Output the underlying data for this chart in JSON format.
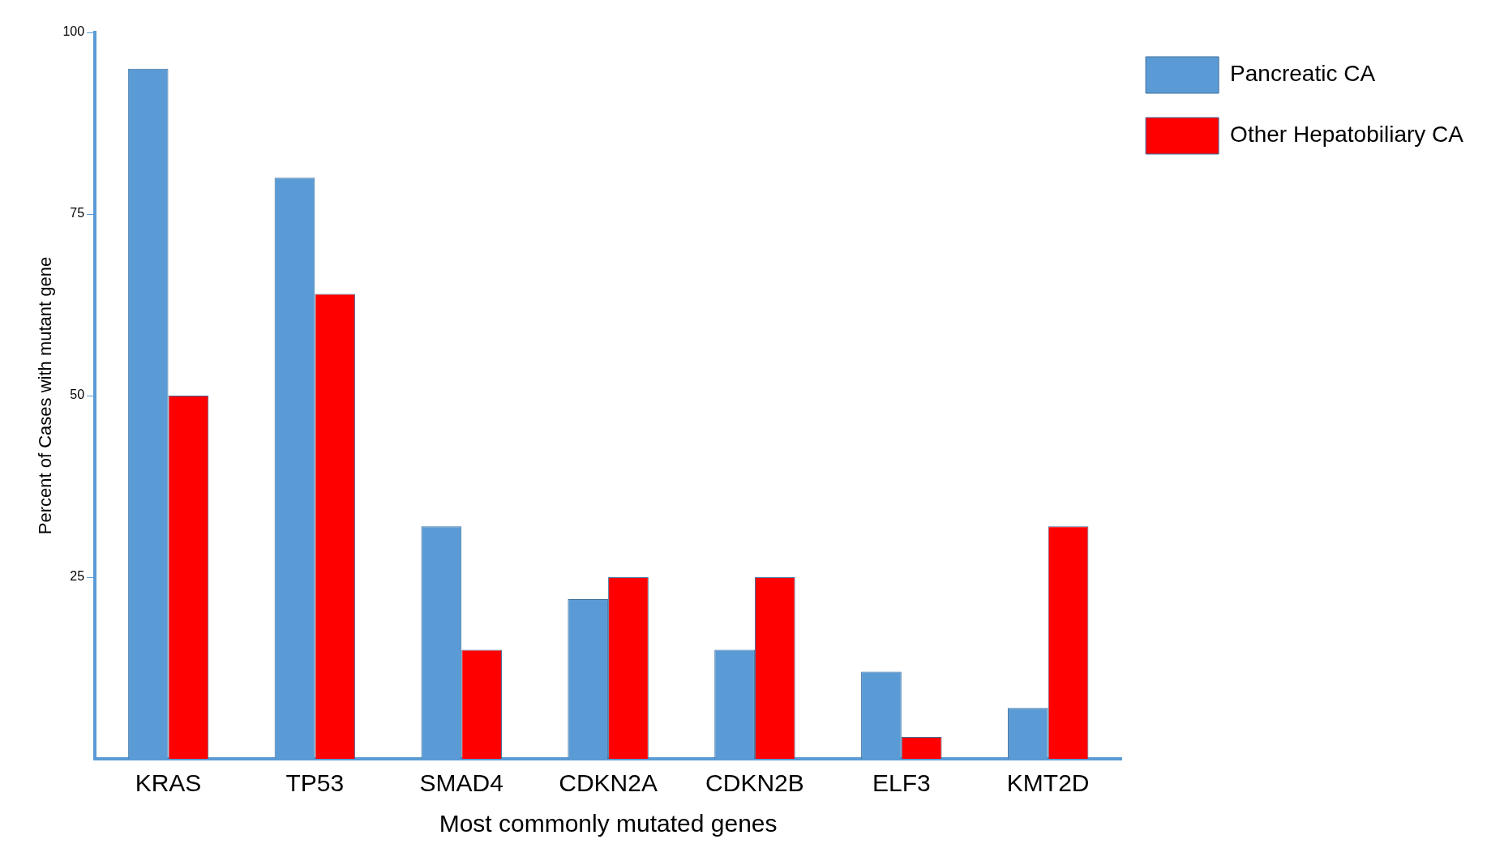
{
  "chart_data": {
    "type": "bar",
    "xlabel": "Most commonly mutated genes",
    "ylabel": "Percent of Cases with mutant gene",
    "categories": [
      "KRAS",
      "TP53",
      "SMAD4",
      "CDKN2A",
      "CDKN2B",
      "ELF3",
      "KMT2D"
    ],
    "series": [
      {
        "name": "Pancreatic CA",
        "color": "#5b9bd5",
        "values": [
          95,
          80,
          32,
          22,
          15,
          12,
          7
        ]
      },
      {
        "name": "Other Hepatobiliary CA",
        "color": "#ff0000",
        "values": [
          50,
          64,
          15,
          25,
          25,
          3,
          32
        ]
      }
    ],
    "ylim": [
      0,
      100
    ],
    "yticks": [
      25,
      50,
      75,
      100
    ],
    "grid": false,
    "legend": "top right"
  }
}
